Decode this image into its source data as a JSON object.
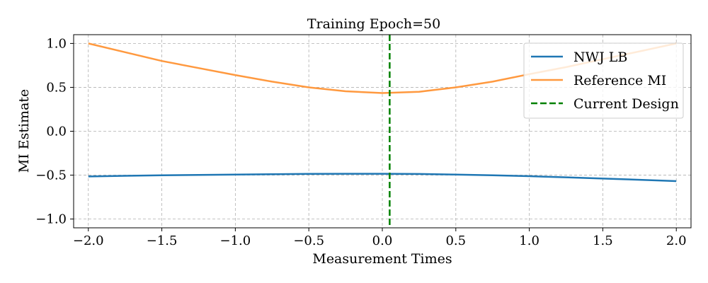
{
  "chart_data": {
    "type": "line",
    "title": "Training Epoch=50",
    "xlabel": "Measurement Times",
    "ylabel": "MI Estimate",
    "xlim": [
      -2.1,
      2.1
    ],
    "ylim": [
      -1.1,
      1.1
    ],
    "xticks": [
      -2.0,
      -1.5,
      -1.0,
      -0.5,
      0.0,
      0.5,
      1.0,
      1.5,
      2.0
    ],
    "xtick_labels": [
      "−2.0",
      "−1.5",
      "−1.0",
      "−0.5",
      "0.0",
      "0.5",
      "1.0",
      "1.5",
      "2.0"
    ],
    "yticks": [
      -1.0,
      -0.5,
      0.0,
      0.5,
      1.0
    ],
    "ytick_labels": [
      "−1.0",
      "−0.5",
      "0.0",
      "0.5",
      "1.0"
    ],
    "grid": true,
    "legend_position": "top-right",
    "series": [
      {
        "name": "NWJ LB",
        "color": "#1f77b4",
        "style": "solid",
        "x": [
          -2.0,
          -1.75,
          -1.5,
          -1.25,
          -1.0,
          -0.75,
          -0.5,
          -0.25,
          0.0,
          0.25,
          0.5,
          0.75,
          1.0,
          1.25,
          1.5,
          1.75,
          2.0
        ],
        "y": [
          -0.515,
          -0.508,
          -0.502,
          -0.497,
          -0.493,
          -0.489,
          -0.486,
          -0.484,
          -0.484,
          -0.487,
          -0.493,
          -0.501,
          -0.512,
          -0.525,
          -0.539,
          -0.553,
          -0.568
        ]
      },
      {
        "name": "Reference MI",
        "color": "#ff993f",
        "style": "solid",
        "x": [
          -2.0,
          -1.75,
          -1.5,
          -1.25,
          -1.0,
          -0.75,
          -0.5,
          -0.25,
          0.0,
          0.25,
          0.5,
          0.75,
          1.0,
          1.25,
          1.5,
          1.75,
          2.0
        ],
        "y": [
          1.0,
          0.9,
          0.8,
          0.72,
          0.64,
          0.565,
          0.5,
          0.455,
          0.435,
          0.45,
          0.5,
          0.565,
          0.65,
          0.73,
          0.82,
          0.91,
          1.0
        ]
      }
    ],
    "vlines": [
      {
        "name": "Current Design",
        "x": 0.05,
        "color": "#008000",
        "style": "dashed"
      }
    ]
  }
}
